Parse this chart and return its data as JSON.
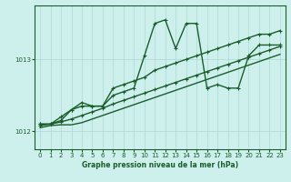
{
  "title": "Graphe pression niveau de la mer (hPa)",
  "bg_color": "#cdf0ed",
  "line_color": "#1a5c2a",
  "grid_color": "#aad8d3",
  "xlim": [
    -0.5,
    23.5
  ],
  "ylim": [
    1011.75,
    1013.75
  ],
  "yticks": [
    1012,
    1013
  ],
  "xticks": [
    0,
    1,
    2,
    3,
    4,
    5,
    6,
    7,
    8,
    9,
    10,
    11,
    12,
    13,
    14,
    15,
    16,
    17,
    18,
    19,
    20,
    21,
    22,
    23
  ],
  "series": [
    [
      1012.1,
      1012.1,
      1012.15,
      1012.3,
      1012.35,
      1012.35,
      1012.35,
      1012.5,
      1012.55,
      1012.6,
      1013.05,
      1013.5,
      1013.55,
      1013.15,
      1013.5,
      1013.5,
      1012.6,
      1012.65,
      1012.6,
      1012.6,
      1013.05,
      1013.2,
      1013.2,
      1013.2
    ],
    [
      1012.1,
      1012.1,
      1012.2,
      1012.3,
      1012.4,
      1012.35,
      1012.35,
      1012.6,
      1012.65,
      1012.7,
      1012.75,
      1012.85,
      1012.9,
      1012.95,
      1013.0,
      1013.05,
      1013.1,
      1013.15,
      1013.2,
      1013.25,
      1013.3,
      1013.35,
      1013.35,
      1013.4
    ],
    [
      1012.08,
      1012.1,
      1012.13,
      1012.17,
      1012.22,
      1012.27,
      1012.32,
      1012.38,
      1012.43,
      1012.48,
      1012.53,
      1012.58,
      1012.63,
      1012.68,
      1012.73,
      1012.78,
      1012.83,
      1012.88,
      1012.93,
      1012.98,
      1013.03,
      1013.08,
      1013.13,
      1013.18
    ],
    [
      1012.05,
      1012.08,
      1012.09,
      1012.09,
      1012.12,
      1012.17,
      1012.22,
      1012.27,
      1012.32,
      1012.37,
      1012.42,
      1012.47,
      1012.52,
      1012.57,
      1012.62,
      1012.67,
      1012.72,
      1012.77,
      1012.82,
      1012.87,
      1012.92,
      1012.97,
      1013.02,
      1013.07
    ]
  ],
  "markers": [
    true,
    true,
    true,
    false
  ],
  "linewidths": [
    1.0,
    1.0,
    1.0,
    1.0
  ]
}
